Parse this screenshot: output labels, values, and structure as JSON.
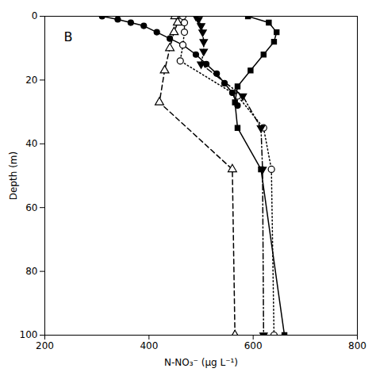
{
  "chart_data": {
    "type": "line",
    "title": "B",
    "xlabel": "N-NO₃⁻ (μg L⁻¹)",
    "ylabel": "Depth (m)",
    "xlim": [
      200,
      800
    ],
    "ylim": [
      100,
      0
    ],
    "xticks": [
      200,
      400,
      600,
      800
    ],
    "yticks": [
      0,
      20,
      40,
      60,
      80,
      100
    ],
    "series": [
      {
        "x": [
          310,
          340,
          365,
          390,
          415,
          440,
          465,
          490,
          510,
          530,
          545,
          560,
          570
        ],
        "values": [
          0,
          1,
          2,
          3,
          5,
          7,
          9,
          12,
          15,
          18,
          21,
          24,
          28
        ],
        "line_style": "solid",
        "marker": "circle",
        "color": "black"
      },
      {
        "x": [
          450,
          455,
          448,
          440,
          430,
          420,
          560,
          565
        ],
        "values": [
          0,
          2,
          5,
          10,
          17,
          27,
          48,
          100
        ],
        "line_style": "dashed",
        "marker": "triangle-open",
        "color": "black"
      },
      {
        "x": [
          465,
          468,
          468,
          465,
          460,
          570,
          620,
          635,
          640
        ],
        "values": [
          0,
          2,
          5,
          9,
          14,
          25,
          35,
          48,
          100
        ],
        "line_style": "dotted",
        "marker": "circle-open",
        "color": "black"
      },
      {
        "x": [
          490,
          495,
          500,
          503,
          505,
          505,
          500,
          580,
          615,
          618,
          620
        ],
        "values": [
          0,
          1,
          3,
          5,
          8,
          11,
          15,
          25,
          35,
          48,
          100
        ],
        "line_style": "dashdot",
        "marker": "triangle-down",
        "color": "black"
      },
      {
        "x": [
          590,
          630,
          645,
          640,
          620,
          595,
          570,
          565,
          570,
          615,
          660
        ],
        "values": [
          0,
          2,
          5,
          8,
          12,
          17,
          22,
          27,
          35,
          48,
          100
        ],
        "line_style": "solid",
        "marker": "square",
        "color": "black"
      }
    ]
  }
}
